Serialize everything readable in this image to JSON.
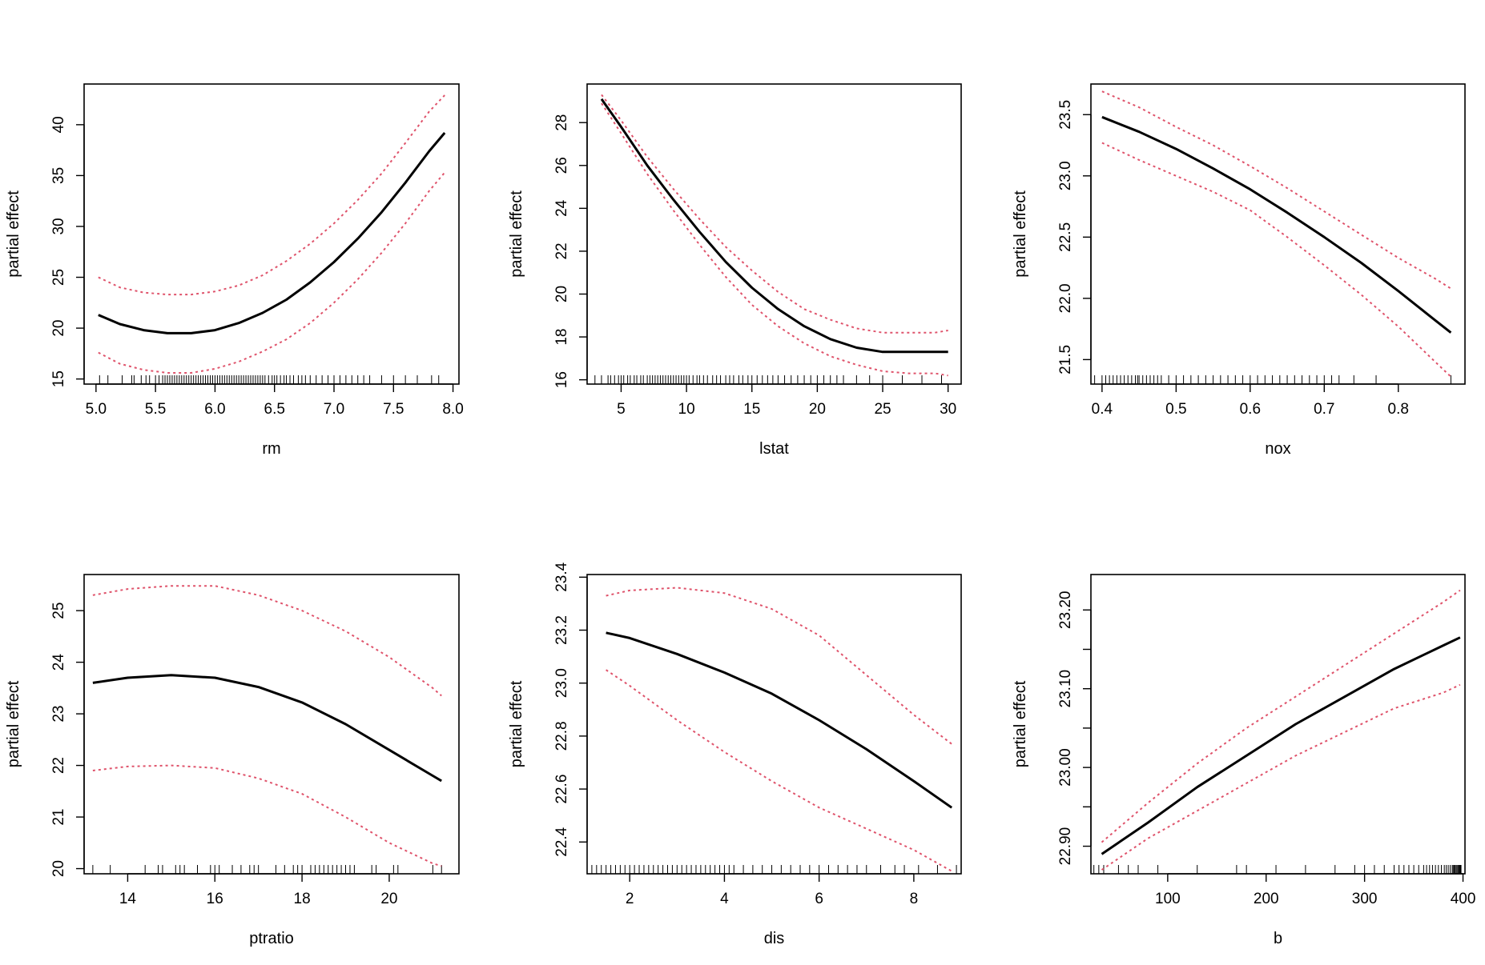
{
  "colors": {
    "fit": "#000000",
    "band": "#df536b",
    "axis": "#000000",
    "background": "#ffffff"
  },
  "chart_data": [
    {
      "type": "line",
      "xlabel": "rm",
      "ylabel": "partial effect",
      "xlim": [
        4.9,
        8.05
      ],
      "ylim": [
        14.5,
        44
      ],
      "xticks": [
        5.0,
        5.5,
        6.0,
        6.5,
        7.0,
        7.5,
        8.0
      ],
      "xtick_labels": [
        "5.0",
        "5.5",
        "6.0",
        "6.5",
        "7.0",
        "7.5",
        "8.0"
      ],
      "yticks": [
        15,
        20,
        25,
        30,
        35,
        40
      ],
      "ytick_labels": [
        "15",
        "20",
        "25",
        "30",
        "35",
        "40"
      ],
      "x": [
        5.02,
        5.2,
        5.4,
        5.6,
        5.8,
        6.0,
        6.2,
        6.4,
        6.6,
        6.8,
        7.0,
        7.2,
        7.4,
        7.6,
        7.8,
        7.93
      ],
      "fit": [
        21.3,
        20.4,
        19.8,
        19.5,
        19.5,
        19.8,
        20.5,
        21.5,
        22.8,
        24.5,
        26.5,
        28.8,
        31.4,
        34.3,
        37.4,
        39.2
      ],
      "upper": [
        25.0,
        24.0,
        23.5,
        23.3,
        23.3,
        23.6,
        24.2,
        25.2,
        26.6,
        28.3,
        30.3,
        32.6,
        35.2,
        38.2,
        41.3,
        42.9
      ],
      "lower": [
        17.6,
        16.5,
        15.9,
        15.6,
        15.6,
        16.0,
        16.7,
        17.7,
        18.9,
        20.5,
        22.5,
        24.8,
        27.4,
        30.3,
        33.5,
        35.3
      ],
      "rug": [
        5.03,
        5.1,
        5.22,
        5.3,
        5.32,
        5.38,
        5.42,
        5.45,
        5.5,
        5.53,
        5.56,
        5.58,
        5.6,
        5.62,
        5.64,
        5.66,
        5.68,
        5.7,
        5.72,
        5.74,
        5.76,
        5.78,
        5.8,
        5.82,
        5.84,
        5.86,
        5.88,
        5.9,
        5.92,
        5.94,
        5.96,
        5.98,
        6.0,
        6.02,
        6.04,
        6.06,
        6.08,
        6.1,
        6.12,
        6.14,
        6.16,
        6.18,
        6.2,
        6.22,
        6.24,
        6.26,
        6.28,
        6.3,
        6.32,
        6.34,
        6.36,
        6.38,
        6.4,
        6.42,
        6.45,
        6.48,
        6.5,
        6.52,
        6.55,
        6.58,
        6.6,
        6.63,
        6.66,
        6.7,
        6.73,
        6.76,
        6.8,
        6.85,
        6.9,
        6.95,
        7.0,
        7.05,
        7.1,
        7.15,
        7.2,
        7.25,
        7.3,
        7.4,
        7.5,
        7.6,
        7.7,
        7.82,
        7.88
      ]
    },
    {
      "type": "line",
      "xlabel": "lstat",
      "ylabel": "partial effect",
      "xlim": [
        2.4,
        31
      ],
      "ylim": [
        15.8,
        29.8
      ],
      "xticks": [
        5,
        10,
        15,
        20,
        25,
        30
      ],
      "xtick_labels": [
        "5",
        "10",
        "15",
        "20",
        "25",
        "30"
      ],
      "yticks": [
        16,
        18,
        20,
        22,
        24,
        26,
        28
      ],
      "ytick_labels": [
        "16",
        "18",
        "20",
        "22",
        "24",
        "26",
        "28"
      ],
      "x": [
        3.5,
        5,
        7,
        9,
        11,
        13,
        15,
        17,
        19,
        21,
        23,
        25,
        27,
        29,
        30
      ],
      "fit": [
        29.1,
        27.8,
        26.0,
        24.4,
        22.9,
        21.5,
        20.3,
        19.3,
        18.5,
        17.9,
        17.5,
        17.3,
        17.3,
        17.3,
        17.3
      ],
      "upper": [
        29.3,
        28.1,
        26.4,
        24.9,
        23.5,
        22.2,
        21.1,
        20.1,
        19.3,
        18.8,
        18.4,
        18.2,
        18.2,
        18.2,
        18.3
      ],
      "lower": [
        28.9,
        27.5,
        25.6,
        23.9,
        22.3,
        20.8,
        19.5,
        18.5,
        17.7,
        17.1,
        16.7,
        16.4,
        16.3,
        16.3,
        16.2
      ],
      "rug": [
        3.0,
        3.5,
        4.0,
        4.2,
        4.5,
        4.8,
        5.0,
        5.2,
        5.5,
        5.7,
        6.0,
        6.2,
        6.5,
        6.7,
        7.0,
        7.2,
        7.4,
        7.6,
        7.8,
        8.0,
        8.2,
        8.4,
        8.6,
        8.8,
        9.0,
        9.2,
        9.4,
        9.6,
        9.8,
        10.0,
        10.2,
        10.5,
        10.8,
        11.0,
        11.3,
        11.6,
        12.0,
        12.3,
        12.6,
        13.0,
        13.3,
        13.6,
        14.0,
        14.3,
        14.7,
        15.0,
        15.4,
        15.8,
        16.2,
        16.6,
        17.0,
        17.5,
        18.0,
        18.5,
        19.0,
        19.5,
        20.0,
        20.5,
        21.0,
        21.5,
        22.0,
        23.0,
        24.0,
        25.0,
        26.5,
        28.0,
        29.5
      ]
    },
    {
      "type": "line",
      "xlabel": "nox",
      "ylabel": "partial effect",
      "xlim": [
        0.385,
        0.89
      ],
      "ylim": [
        21.3,
        23.75
      ],
      "xticks": [
        0.4,
        0.5,
        0.6,
        0.7,
        0.8
      ],
      "xtick_labels": [
        "0.4",
        "0.5",
        "0.6",
        "0.7",
        "0.8"
      ],
      "yticks": [
        21.5,
        22.0,
        22.5,
        23.0,
        23.5
      ],
      "ytick_labels": [
        "21.5",
        "22.0",
        "22.5",
        "23.0",
        "23.5"
      ],
      "x": [
        0.4,
        0.45,
        0.5,
        0.55,
        0.6,
        0.65,
        0.7,
        0.75,
        0.8,
        0.85,
        0.871
      ],
      "fit": [
        23.48,
        23.36,
        23.22,
        23.06,
        22.89,
        22.7,
        22.5,
        22.29,
        22.06,
        21.82,
        21.72
      ],
      "upper": [
        23.69,
        23.56,
        23.4,
        23.25,
        23.08,
        22.9,
        22.71,
        22.52,
        22.33,
        22.16,
        22.08
      ],
      "lower": [
        23.27,
        23.13,
        23.0,
        22.87,
        22.72,
        22.5,
        22.27,
        22.03,
        21.77,
        21.48,
        21.36
      ],
      "rug": [
        0.39,
        0.4,
        0.405,
        0.41,
        0.415,
        0.42,
        0.425,
        0.43,
        0.435,
        0.44,
        0.445,
        0.448,
        0.45,
        0.455,
        0.46,
        0.465,
        0.47,
        0.475,
        0.48,
        0.49,
        0.5,
        0.51,
        0.52,
        0.53,
        0.54,
        0.55,
        0.56,
        0.57,
        0.58,
        0.59,
        0.6,
        0.61,
        0.62,
        0.63,
        0.64,
        0.65,
        0.66,
        0.67,
        0.68,
        0.69,
        0.7,
        0.71,
        0.72,
        0.74,
        0.77,
        0.871
      ]
    },
    {
      "type": "line",
      "xlabel": "ptratio",
      "ylabel": "partial effect",
      "xlim": [
        13.0,
        21.6
      ],
      "ylim": [
        19.9,
        25.7
      ],
      "xticks": [
        14,
        16,
        18,
        20
      ],
      "xtick_labels": [
        "14",
        "16",
        "18",
        "20"
      ],
      "yticks": [
        20,
        21,
        22,
        23,
        24,
        25
      ],
      "ytick_labels": [
        "20",
        "21",
        "22",
        "23",
        "24",
        "25"
      ],
      "x": [
        13.2,
        14,
        15,
        16,
        17,
        18,
        19,
        20,
        21,
        21.2
      ],
      "fit": [
        23.6,
        23.7,
        23.75,
        23.7,
        23.52,
        23.22,
        22.8,
        22.3,
        21.8,
        21.7
      ],
      "upper": [
        25.3,
        25.42,
        25.48,
        25.48,
        25.3,
        25.0,
        24.6,
        24.1,
        23.5,
        23.35
      ],
      "lower": [
        21.9,
        21.98,
        22.0,
        21.95,
        21.75,
        21.45,
        21.0,
        20.5,
        20.1,
        20.05
      ],
      "rug": [
        13.2,
        13.6,
        14.4,
        14.7,
        14.8,
        15.1,
        15.2,
        15.3,
        15.6,
        15.9,
        16.0,
        16.1,
        16.4,
        16.6,
        16.8,
        16.9,
        17.0,
        17.4,
        17.6,
        17.8,
        17.9,
        18.0,
        18.2,
        18.3,
        18.4,
        18.5,
        18.6,
        18.7,
        18.8,
        18.9,
        19.0,
        19.1,
        19.2,
        19.6,
        19.7,
        20.1,
        20.2,
        21.0,
        21.2
      ]
    },
    {
      "type": "line",
      "xlabel": "dis",
      "ylabel": "partial effect",
      "xlim": [
        1.1,
        9.0
      ],
      "ylim": [
        22.28,
        23.41
      ],
      "xticks": [
        2,
        4,
        6,
        8
      ],
      "xtick_labels": [
        "2",
        "4",
        "6",
        "8"
      ],
      "yticks": [
        22.4,
        22.6,
        22.8,
        23.0,
        23.2,
        23.4
      ],
      "ytick_labels": [
        "22.4",
        "22.6",
        "22.8",
        "23.0",
        "23.2",
        "23.4"
      ],
      "x": [
        1.5,
        2,
        3,
        4,
        5,
        6,
        7,
        8,
        8.8
      ],
      "fit": [
        23.19,
        23.17,
        23.11,
        23.04,
        22.96,
        22.86,
        22.75,
        22.63,
        22.53
      ],
      "upper": [
        23.33,
        23.35,
        23.36,
        23.34,
        23.28,
        23.18,
        23.03,
        22.88,
        22.77
      ],
      "lower": [
        23.05,
        22.99,
        22.86,
        22.74,
        22.63,
        22.53,
        22.45,
        22.37,
        22.29
      ],
      "rug": [
        1.2,
        1.3,
        1.4,
        1.5,
        1.6,
        1.7,
        1.8,
        1.9,
        2.0,
        2.1,
        2.2,
        2.3,
        2.4,
        2.5,
        2.6,
        2.7,
        2.8,
        2.9,
        3.0,
        3.1,
        3.2,
        3.3,
        3.4,
        3.5,
        3.6,
        3.7,
        3.8,
        3.9,
        4.0,
        4.1,
        4.2,
        4.4,
        4.6,
        4.8,
        5.0,
        5.2,
        5.4,
        5.6,
        5.8,
        6.0,
        6.2,
        6.4,
        6.6,
        6.8,
        7.0,
        7.3,
        7.6,
        7.8,
        8.1,
        8.5,
        8.9
      ]
    },
    {
      "type": "line",
      "xlabel": "b",
      "ylabel": "partial effect",
      "xlim": [
        22,
        402
      ],
      "ylim": [
        22.865,
        23.245
      ],
      "xticks": [
        100,
        200,
        300,
        400
      ],
      "xtick_labels": [
        "100",
        "200",
        "300",
        "400"
      ],
      "yticks": [
        22.9,
        22.95,
        23.0,
        23.05,
        23.1,
        23.15,
        23.2
      ],
      "ytick_labels": [
        "22.90",
        "",
        "23.00",
        "",
        "23.10",
        "",
        "23.20"
      ],
      "x": [
        33,
        80,
        130,
        180,
        230,
        280,
        330,
        380,
        397
      ],
      "fit": [
        22.89,
        22.93,
        22.975,
        23.015,
        23.055,
        23.09,
        23.125,
        23.155,
        23.165
      ],
      "upper": [
        22.905,
        22.955,
        23.005,
        23.05,
        23.09,
        23.13,
        23.17,
        23.21,
        23.225
      ],
      "lower": [
        22.87,
        22.91,
        22.945,
        22.98,
        23.015,
        23.045,
        23.075,
        23.095,
        23.105
      ],
      "rug": [
        25,
        30,
        35,
        50,
        60,
        70,
        90,
        130,
        170,
        180,
        210,
        240,
        270,
        290,
        300,
        310,
        320,
        330,
        335,
        340,
        345,
        350,
        355,
        360,
        363,
        366,
        369,
        372,
        375,
        378,
        381,
        383,
        385,
        387,
        389,
        390,
        391,
        392,
        393,
        394,
        395,
        396,
        396.5,
        397,
        397.5,
        398
      ]
    }
  ]
}
